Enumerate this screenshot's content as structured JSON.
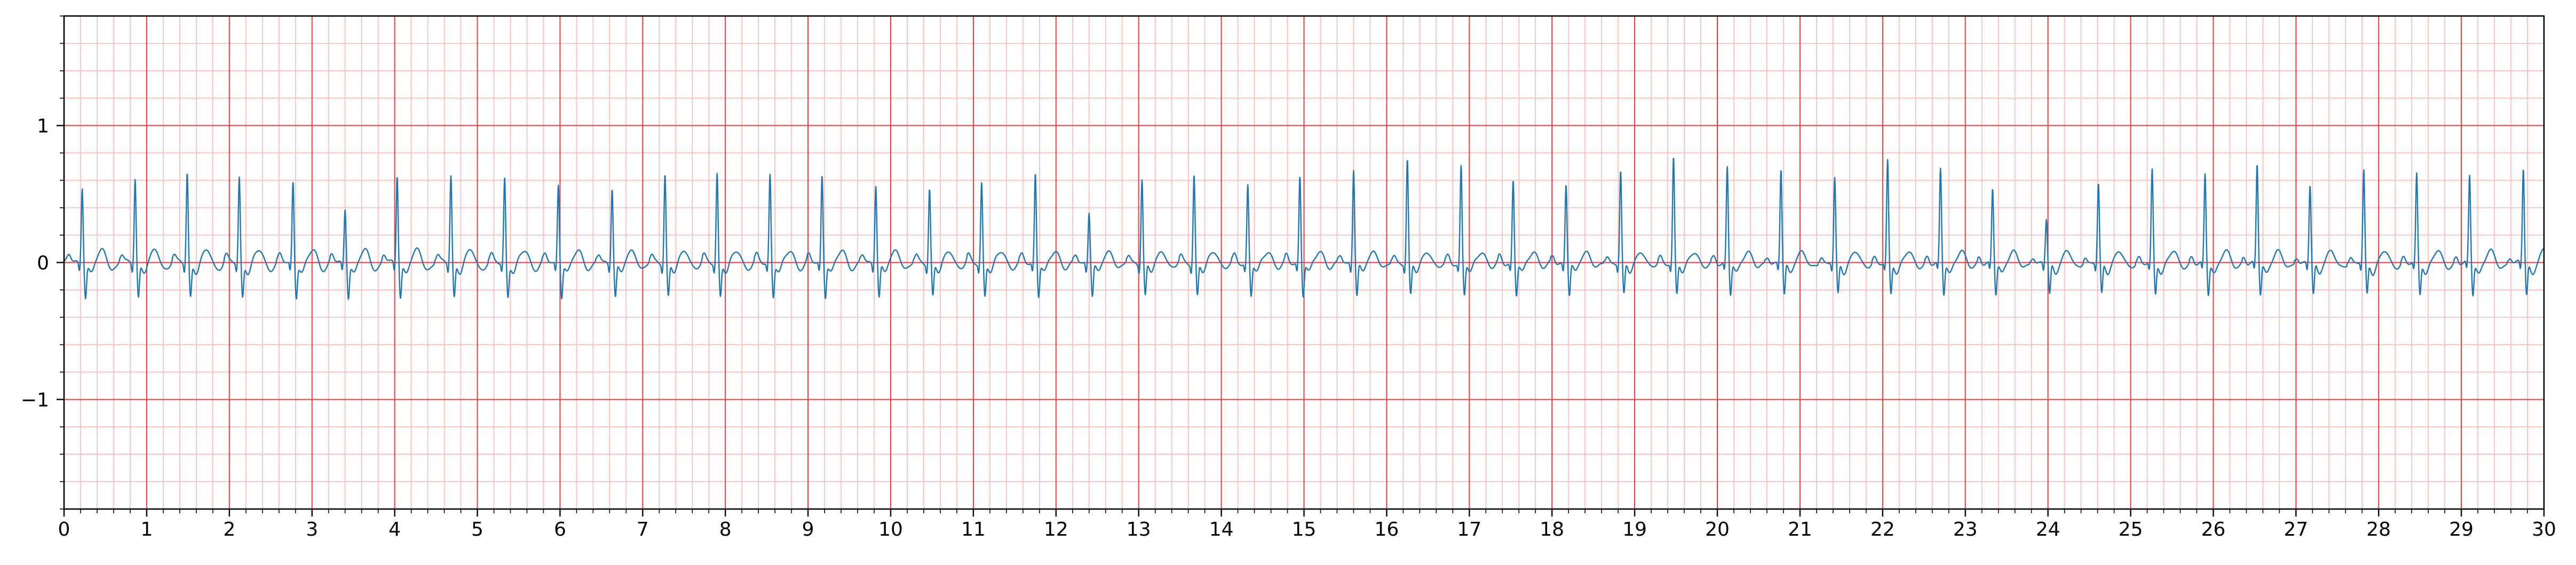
{
  "chart_data": {
    "type": "line",
    "title": "",
    "xlabel": "",
    "ylabel": "",
    "xlim": [
      0,
      30
    ],
    "ylim": [
      -1.8,
      1.8
    ],
    "x_ticks": [
      "0",
      "1",
      "2",
      "3",
      "4",
      "5",
      "6",
      "7",
      "8",
      "9",
      "10",
      "11",
      "12",
      "13",
      "14",
      "15",
      "16",
      "17",
      "18",
      "19",
      "20",
      "21",
      "22",
      "23",
      "24",
      "25",
      "26",
      "27",
      "28",
      "29",
      "30"
    ],
    "y_ticks": [
      {
        "value": 1,
        "label": "1"
      },
      {
        "value": 0,
        "label": "0"
      },
      {
        "value": -1,
        "label": "−1"
      }
    ],
    "grid": {
      "major_x": 1,
      "major_y": 1,
      "minor_x": 0.2,
      "minor_y": 0.2
    },
    "series": [
      {
        "style": "ecg-trace",
        "color": "#1f77b4",
        "beats": [
          {
            "t": 0.22,
            "amp": 0.56
          },
          {
            "t": 0.86,
            "amp": 0.63
          },
          {
            "t": 1.49,
            "amp": 0.67
          },
          {
            "t": 2.12,
            "amp": 0.63
          },
          {
            "t": 2.77,
            "amp": 0.6
          },
          {
            "t": 3.4,
            "amp": 0.4
          },
          {
            "t": 4.03,
            "amp": 0.65
          },
          {
            "t": 4.68,
            "amp": 0.65
          },
          {
            "t": 5.33,
            "amp": 0.63
          },
          {
            "t": 5.98,
            "amp": 0.58
          },
          {
            "t": 6.63,
            "amp": 0.56
          },
          {
            "t": 7.27,
            "amp": 0.66
          },
          {
            "t": 7.9,
            "amp": 0.66
          },
          {
            "t": 8.54,
            "amp": 0.65
          },
          {
            "t": 9.17,
            "amp": 0.65
          },
          {
            "t": 9.82,
            "amp": 0.58
          },
          {
            "t": 10.47,
            "amp": 0.55
          },
          {
            "t": 11.1,
            "amp": 0.59
          },
          {
            "t": 11.75,
            "amp": 0.66
          },
          {
            "t": 12.4,
            "amp": 0.38
          },
          {
            "t": 13.04,
            "amp": 0.62
          },
          {
            "t": 13.67,
            "amp": 0.65
          },
          {
            "t": 14.32,
            "amp": 0.57
          },
          {
            "t": 14.95,
            "amp": 0.64
          },
          {
            "t": 15.6,
            "amp": 0.69
          },
          {
            "t": 16.25,
            "amp": 0.76
          },
          {
            "t": 16.9,
            "amp": 0.7
          },
          {
            "t": 17.53,
            "amp": 0.6
          },
          {
            "t": 18.17,
            "amp": 0.58
          },
          {
            "t": 18.83,
            "amp": 0.67
          },
          {
            "t": 19.47,
            "amp": 0.76
          },
          {
            "t": 20.12,
            "amp": 0.69
          },
          {
            "t": 20.77,
            "amp": 0.68
          },
          {
            "t": 21.42,
            "amp": 0.61
          },
          {
            "t": 22.06,
            "amp": 0.73
          },
          {
            "t": 22.7,
            "amp": 0.67
          },
          {
            "t": 23.33,
            "amp": 0.53
          },
          {
            "t": 23.98,
            "amp": 0.31
          },
          {
            "t": 24.61,
            "amp": 0.57
          },
          {
            "t": 25.26,
            "amp": 0.66
          },
          {
            "t": 25.9,
            "amp": 0.63
          },
          {
            "t": 26.53,
            "amp": 0.71
          },
          {
            "t": 27.17,
            "amp": 0.56
          },
          {
            "t": 27.82,
            "amp": 0.66
          },
          {
            "t": 28.46,
            "amp": 0.63
          },
          {
            "t": 29.1,
            "amp": 0.62
          },
          {
            "t": 29.75,
            "amp": 0.68
          }
        ]
      }
    ]
  }
}
